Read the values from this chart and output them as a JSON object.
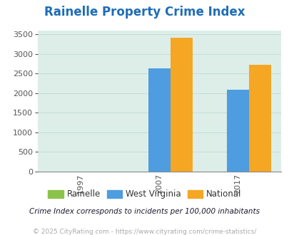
{
  "title": "Rainelle Property Crime Index",
  "title_color": "#1e6db5",
  "years": [
    "1997",
    "2007",
    "2017"
  ],
  "rainelle": [
    0,
    0,
    0
  ],
  "west_virginia": [
    0,
    2630,
    2090
  ],
  "national": [
    0,
    3420,
    2720
  ],
  "bar_color_rainelle": "#8bc34a",
  "bar_color_wv": "#4d9de0",
  "bar_color_national": "#f5a623",
  "ylim": [
    0,
    3600
  ],
  "yticks": [
    0,
    500,
    1000,
    1500,
    2000,
    2500,
    3000,
    3500
  ],
  "background_color": "#ddeee8",
  "grid_color": "#c8ddd8",
  "footer1": "Crime Index corresponds to incidents per 100,000 inhabitants",
  "footer2": "© 2025 CityRating.com - https://www.cityrating.com/crime-statistics/",
  "legend_labels": [
    "Rainelle",
    "West Virginia",
    "National"
  ]
}
